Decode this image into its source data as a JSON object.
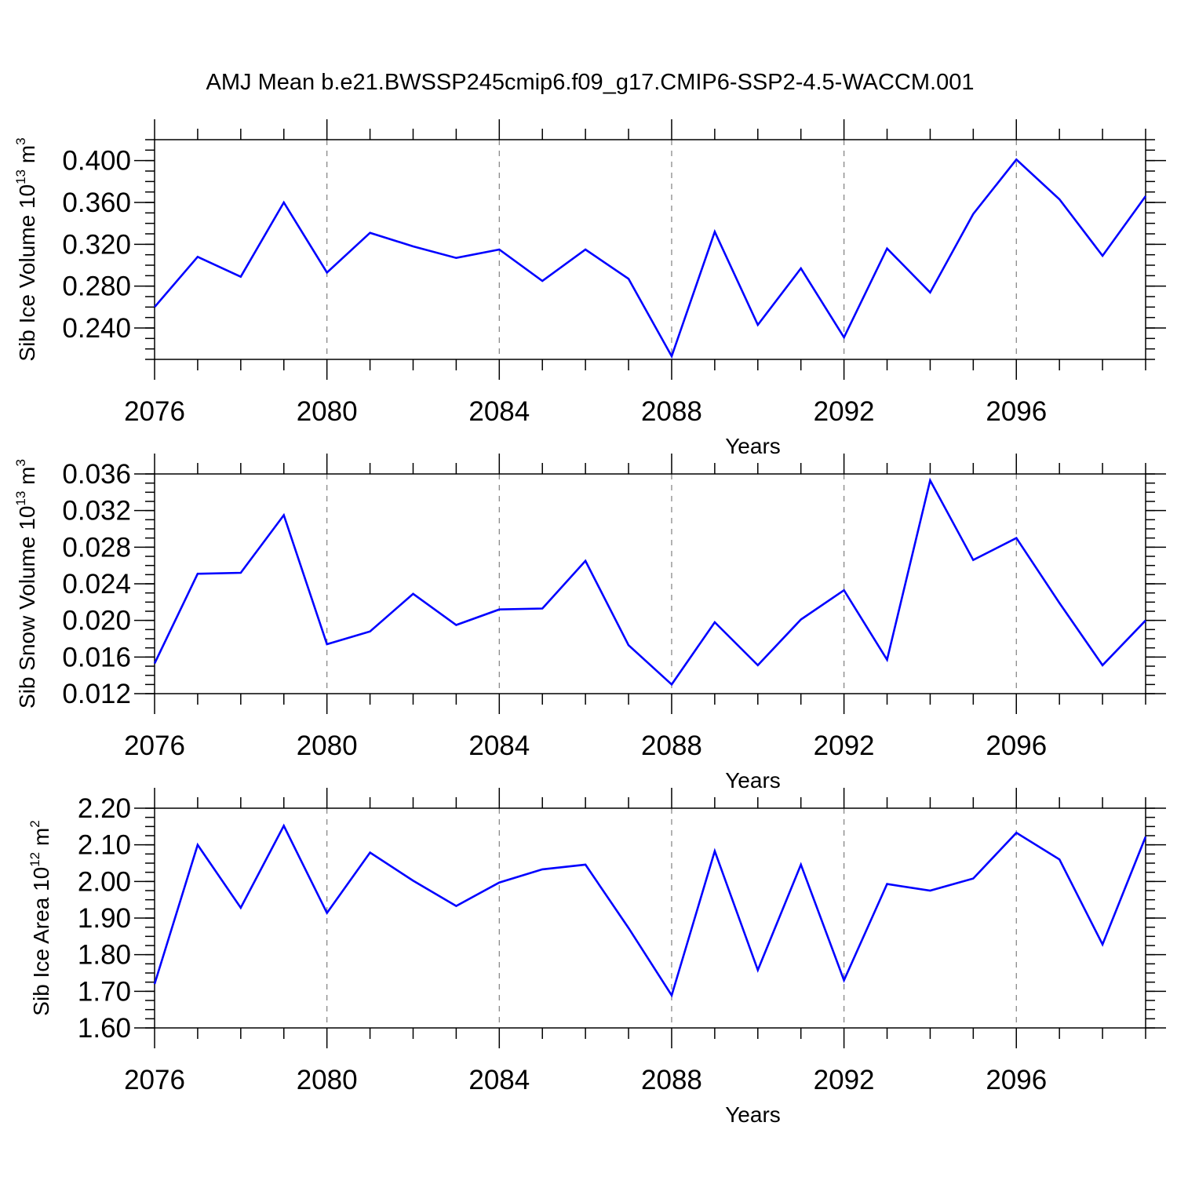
{
  "title": "AMJ Mean b.e21.BWSSP245cmip6.f09_g17.CMIP6-SSP2-4.5-WACCM.001",
  "chart_data": [
    {
      "type": "line",
      "xlabel": "Years",
      "ylabel": {
        "text": "Sib Ice Volume 10",
        "exp": "13",
        "unit": " m",
        "unit_exp": "3"
      },
      "xlim": [
        2076,
        2099
      ],
      "ylim": [
        0.21,
        0.42
      ],
      "xticks": [
        2076,
        2080,
        2084,
        2088,
        2092,
        2096
      ],
      "xtick_labels": [
        "2076",
        "2080",
        "2084",
        "2088",
        "2092",
        "2096"
      ],
      "yticks": [
        0.24,
        0.28,
        0.32,
        0.36,
        0.4
      ],
      "ytick_labels": [
        "0.240",
        "0.280",
        "0.320",
        "0.360",
        "0.400"
      ],
      "y_minor_step": 0.01,
      "grid": "dashed vertical at major x ticks",
      "color": "#0000ff",
      "x": [
        2076,
        2077,
        2078,
        2079,
        2080,
        2081,
        2082,
        2083,
        2084,
        2085,
        2086,
        2087,
        2088,
        2089,
        2090,
        2091,
        2092,
        2093,
        2094,
        2095,
        2096,
        2097,
        2098,
        2099
      ],
      "y": [
        0.26,
        0.308,
        0.289,
        0.36,
        0.293,
        0.331,
        0.318,
        0.307,
        0.315,
        0.285,
        0.315,
        0.287,
        0.213,
        0.332,
        0.243,
        0.297,
        0.231,
        0.316,
        0.274,
        0.349,
        0.401,
        0.363,
        0.309,
        0.366
      ]
    },
    {
      "type": "line",
      "xlabel": "Years",
      "ylabel": {
        "text": "Sib Snow Volume 10",
        "exp": "13",
        "unit": " m",
        "unit_exp": "3"
      },
      "xlim": [
        2076,
        2099
      ],
      "ylim": [
        0.012,
        0.036
      ],
      "xticks": [
        2076,
        2080,
        2084,
        2088,
        2092,
        2096
      ],
      "xtick_labels": [
        "2076",
        "2080",
        "2084",
        "2088",
        "2092",
        "2096"
      ],
      "yticks": [
        0.012,
        0.016,
        0.02,
        0.024,
        0.028,
        0.032,
        0.036
      ],
      "ytick_labels": [
        "0.012",
        "0.016",
        "0.020",
        "0.024",
        "0.028",
        "0.032",
        "0.036"
      ],
      "y_minor_step": 0.001,
      "grid": "dashed vertical at major x ticks",
      "color": "#0000ff",
      "x": [
        2076,
        2077,
        2078,
        2079,
        2080,
        2081,
        2082,
        2083,
        2084,
        2085,
        2086,
        2087,
        2088,
        2089,
        2090,
        2091,
        2092,
        2093,
        2094,
        2095,
        2096,
        2097,
        2098,
        2099
      ],
      "y": [
        0.0153,
        0.0251,
        0.0252,
        0.0315,
        0.0174,
        0.0188,
        0.0229,
        0.0195,
        0.0212,
        0.0213,
        0.0265,
        0.0173,
        0.013,
        0.0198,
        0.0151,
        0.0201,
        0.0233,
        0.0157,
        0.0353,
        0.0266,
        0.029,
        0.0219,
        0.0151,
        0.02
      ]
    },
    {
      "type": "line",
      "xlabel": "Years",
      "ylabel": {
        "text": "Sib Ice Area 10",
        "exp": "12",
        "unit": " m",
        "unit_exp": "2"
      },
      "xlim": [
        2076,
        2099
      ],
      "ylim": [
        1.6,
        2.2
      ],
      "xticks": [
        2076,
        2080,
        2084,
        2088,
        2092,
        2096
      ],
      "xtick_labels": [
        "2076",
        "2080",
        "2084",
        "2088",
        "2092",
        "2096"
      ],
      "yticks": [
        1.6,
        1.7,
        1.8,
        1.9,
        2.0,
        2.1,
        2.2
      ],
      "ytick_labels": [
        "1.60",
        "1.70",
        "1.80",
        "1.90",
        "2.00",
        "2.10",
        "2.20"
      ],
      "y_minor_step": 0.025,
      "grid": "dashed vertical at major x ticks",
      "color": "#0000ff",
      "x": [
        2076,
        2077,
        2078,
        2079,
        2080,
        2081,
        2082,
        2083,
        2084,
        2085,
        2086,
        2087,
        2088,
        2089,
        2090,
        2091,
        2092,
        2093,
        2094,
        2095,
        2096,
        2097,
        2098,
        2099
      ],
      "y": [
        1.72,
        2.1,
        1.928,
        2.152,
        1.914,
        2.079,
        2.002,
        1.933,
        1.997,
        2.033,
        2.046,
        1.873,
        1.689,
        2.083,
        1.758,
        2.046,
        1.73,
        1.993,
        1.975,
        2.008,
        2.133,
        2.06,
        1.828,
        2.122
      ]
    }
  ]
}
